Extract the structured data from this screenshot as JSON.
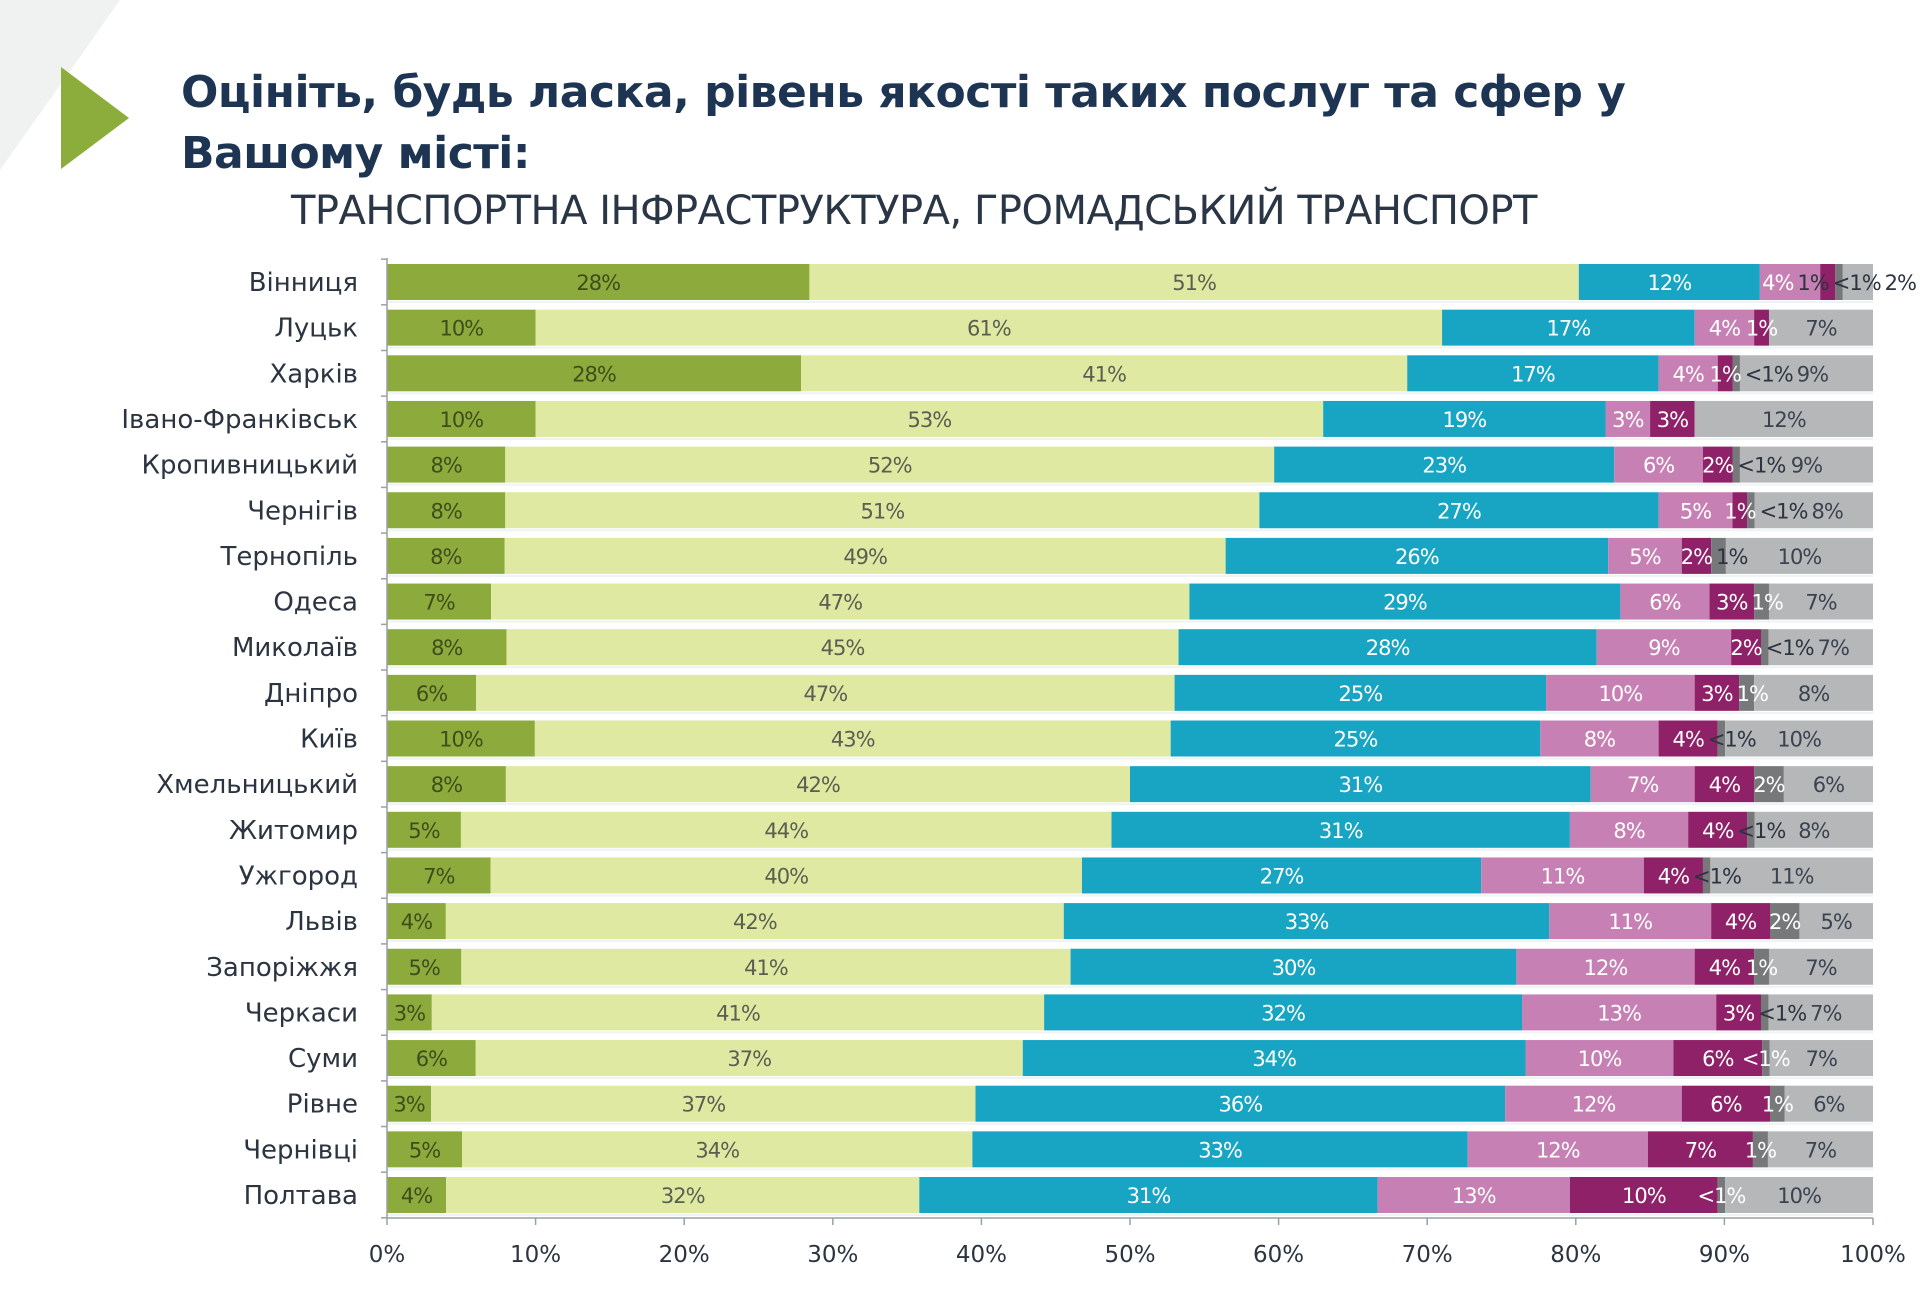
{
  "header": {
    "title": "Оцініть, будь ласка, рівень якості таких послуг та сфер у Вашому місті:",
    "subtitle": "ТРАНСПОРТНА ІНФРАСТРУКТУРА, ГРОМАДСЬКИЙ ТРАНСПОРТ",
    "accent_color": "#8cad3b"
  },
  "chart_data": {
    "type": "bar",
    "orientation": "horizontal",
    "stacked": "100%",
    "xlim": [
      0,
      100
    ],
    "x_ticks": [
      "0%",
      "10%",
      "20%",
      "30%",
      "40%",
      "50%",
      "60%",
      "70%",
      "80%",
      "90%",
      "100%"
    ],
    "grid": false,
    "legend": "none",
    "segment_colors": [
      "#8cab3c",
      "#dfe9a2",
      "#17a5c3",
      "#c780b4",
      "#8f2168",
      "#76787a",
      "#b6b7b9"
    ],
    "segment_label_colors": [
      "#3e4d1c",
      "#5a5f52",
      "#ffffff",
      "#ffffff",
      "#ffffff",
      "#ffffff",
      "#3b4350"
    ],
    "categories": [
      "Вінниця",
      "Луцьк",
      "Харків",
      "Івано-Франківськ",
      "Кропивницький",
      "Чернігів",
      "Тернопіль",
      "Одеса",
      "Миколаїв",
      "Дніпро",
      "Київ",
      "Хмельницький",
      "Житомир",
      "Ужгород",
      "Львів",
      "Запоріжжя",
      "Черкаси",
      "Суми",
      "Рівне",
      "Чернівці",
      "Полтава"
    ],
    "values": [
      [
        28,
        51,
        12,
        4,
        1,
        0.5,
        2
      ],
      [
        10,
        61,
        17,
        4,
        1,
        0,
        7
      ],
      [
        28,
        41,
        17,
        4,
        1,
        0.5,
        9
      ],
      [
        10,
        53,
        19,
        3,
        3,
        0,
        12
      ],
      [
        8,
        52,
        23,
        6,
        2,
        0.5,
        9
      ],
      [
        8,
        51,
        27,
        5,
        1,
        0.5,
        8
      ],
      [
        8,
        49,
        26,
        5,
        2,
        1,
        10
      ],
      [
        7,
        47,
        29,
        6,
        3,
        1,
        7
      ],
      [
        8,
        45,
        28,
        9,
        2,
        0.5,
        7
      ],
      [
        6,
        47,
        25,
        10,
        3,
        1,
        8
      ],
      [
        10,
        43,
        25,
        8,
        4,
        0.5,
        10
      ],
      [
        8,
        42,
        31,
        7,
        4,
        2,
        6
      ],
      [
        5,
        44,
        31,
        8,
        4,
        0.5,
        8
      ],
      [
        7,
        40,
        27,
        11,
        4,
        0.5,
        11
      ],
      [
        4,
        42,
        33,
        11,
        4,
        2,
        5
      ],
      [
        5,
        41,
        30,
        12,
        4,
        1,
        7
      ],
      [
        3,
        41,
        32,
        13,
        3,
        0.5,
        7
      ],
      [
        6,
        37,
        34,
        10,
        6,
        0.5,
        7
      ],
      [
        3,
        37,
        36,
        12,
        6,
        1,
        6
      ],
      [
        5,
        34,
        33,
        12,
        7,
        1,
        7
      ],
      [
        4,
        32,
        31,
        13,
        10,
        0.5,
        10
      ]
    ],
    "labels": [
      [
        "28%",
        "51%",
        "12%",
        "4%",
        "1%",
        "<1%",
        "2%"
      ],
      [
        "10%",
        "61%",
        "17%",
        "4%",
        "1%",
        "",
        "7%"
      ],
      [
        "28%",
        "41%",
        "17%",
        "4%",
        "1%",
        "<1%",
        "9%"
      ],
      [
        "10%",
        "53%",
        "19%",
        "3%",
        "3%",
        "",
        "12%"
      ],
      [
        "8%",
        "52%",
        "23%",
        "6%",
        "2%",
        "<1%",
        "9%"
      ],
      [
        "8%",
        "51%",
        "27%",
        "5%",
        "1%",
        "<1%",
        "8%"
      ],
      [
        "8%",
        "49%",
        "26%",
        "5%",
        "2%",
        "1%",
        "10%"
      ],
      [
        "7%",
        "47%",
        "29%",
        "6%",
        "3%",
        "1%",
        "7%"
      ],
      [
        "8%",
        "45%",
        "28%",
        "9%",
        "2%",
        "<1%",
        "7%"
      ],
      [
        "6%",
        "47%",
        "25%",
        "10%",
        "3%",
        "1%",
        "8%"
      ],
      [
        "10%",
        "43%",
        "25%",
        "8%",
        "4%",
        "<1%",
        "10%"
      ],
      [
        "8%",
        "42%",
        "31%",
        "7%",
        "4%",
        "2%",
        "6%"
      ],
      [
        "5%",
        "44%",
        "31%",
        "8%",
        "4%",
        "<1%",
        "8%"
      ],
      [
        "7%",
        "40%",
        "27%",
        "11%",
        "4%",
        "<1%",
        "11%"
      ],
      [
        "4%",
        "42%",
        "33%",
        "11%",
        "4%",
        "2%",
        "5%"
      ],
      [
        "5%",
        "41%",
        "30%",
        "12%",
        "4%",
        "1%",
        "7%"
      ],
      [
        "3%",
        "41%",
        "32%",
        "13%",
        "3%",
        "<1%",
        "7%"
      ],
      [
        "6%",
        "37%",
        "34%",
        "10%",
        "6%",
        "<1%",
        "7%"
      ],
      [
        "3%",
        "37%",
        "36%",
        "12%",
        "6%",
        "1%",
        "6%"
      ],
      [
        "5%",
        "34%",
        "33%",
        "12%",
        "7%",
        "1%",
        "7%"
      ],
      [
        "4%",
        "32%",
        "31%",
        "13%",
        "10%",
        "<1%",
        "10%"
      ]
    ]
  }
}
